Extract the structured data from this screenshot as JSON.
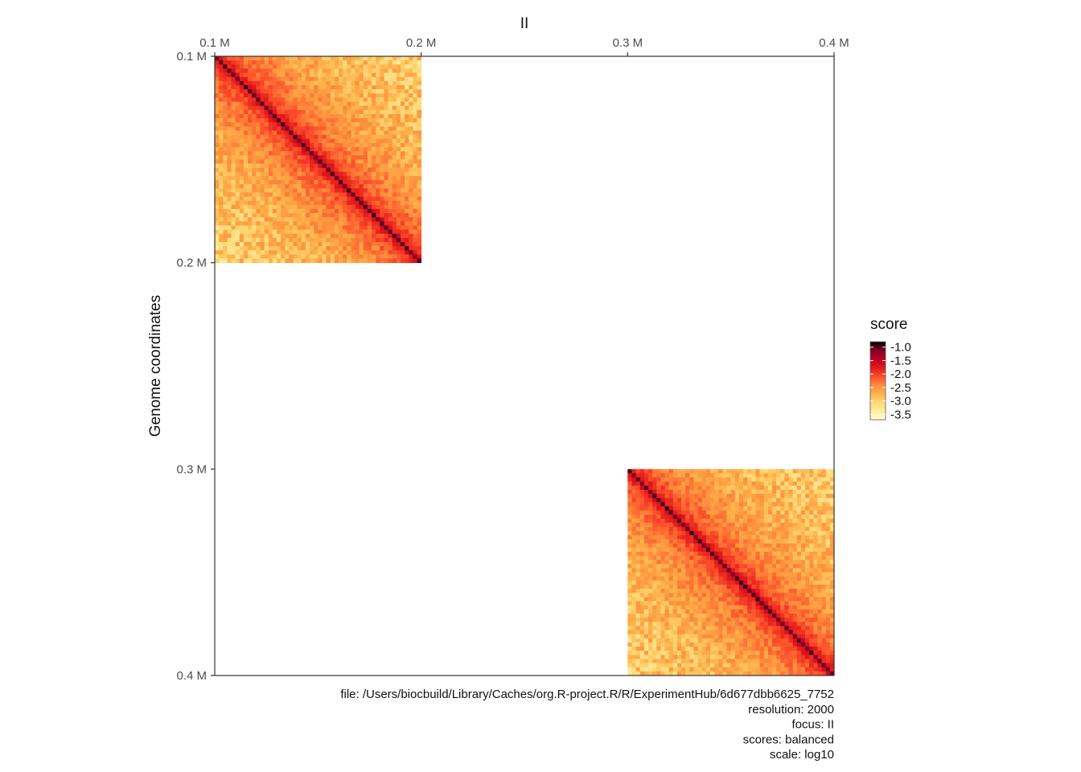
{
  "chart_data": {
    "type": "heatmap",
    "title": "II",
    "ylabel": "Genome coordinates",
    "xlabel": "",
    "x_ticks": [
      {
        "value": 100000,
        "label": "0.1 M"
      },
      {
        "value": 200000,
        "label": "0.2 M"
      },
      {
        "value": 300000,
        "label": "0.3 M"
      },
      {
        "value": 400000,
        "label": "0.4 M"
      }
    ],
    "y_ticks": [
      {
        "value": 100000,
        "label": "0.1 M"
      },
      {
        "value": 200000,
        "label": "0.2 M"
      },
      {
        "value": 300000,
        "label": "0.3 M"
      },
      {
        "value": 400000,
        "label": "0.4 M"
      }
    ],
    "xlim": [
      100000,
      400000
    ],
    "ylim": [
      100000,
      400000
    ],
    "x_axis_position": "top",
    "y_reversed": true,
    "grid": false,
    "resolution_bp": 2000,
    "regions": [
      {
        "start": 100000,
        "end": 200000,
        "diagonal_score": -0.9,
        "far_score": -3.6
      },
      {
        "start": 300000,
        "end": 400000,
        "diagonal_score": -0.9,
        "far_score": -3.6
      }
    ],
    "legend": {
      "title": "score",
      "position": "right",
      "range": [
        -3.7,
        -0.8
      ],
      "ticks": [
        {
          "value": -1.0,
          "label": "-1.0"
        },
        {
          "value": -1.5,
          "label": "-1.5"
        },
        {
          "value": -2.0,
          "label": "-2.0"
        },
        {
          "value": -2.5,
          "label": "-2.5"
        },
        {
          "value": -3.0,
          "label": "-3.0"
        },
        {
          "value": -3.5,
          "label": "-3.5"
        }
      ],
      "colors": [
        "#ffffcc",
        "#ffeda0",
        "#fed976",
        "#feb24c",
        "#fd8d3c",
        "#fc4e2a",
        "#e31a1c",
        "#bd0026",
        "#800026",
        "#000000"
      ]
    },
    "caption_lines": [
      "file: /Users/biocbuild/Library/Caches/org.R-project.R/R/ExperimentHub/6d677dbb6625_7752",
      "resolution: 2000",
      "focus: II",
      "scores: balanced",
      "scale: log10"
    ]
  }
}
